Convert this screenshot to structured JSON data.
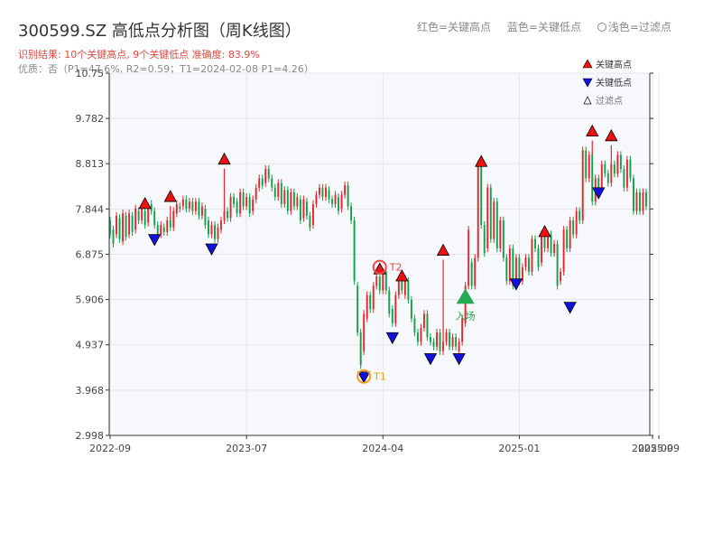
{
  "header": {
    "title": "300599.SZ 高低点分析图（周K线图）",
    "result_line": "识别结果: 10个关键高点, 9个关键低点  准确度: 83.9%",
    "quality_line": "优质：否（P1=47.6%, R2=0.59；T1=2024-02-08 P1=4.26）"
  },
  "top_legend": {
    "red": "红色=关键高点",
    "blue": "蓝色=关键低点",
    "hollow": "浅色=过滤点"
  },
  "colors": {
    "up": "#e0282e",
    "down": "#13a04a",
    "high_marker": "#ee1111",
    "low_marker": "#1111dd",
    "entry_marker": "#22aa55",
    "t1_ring": "#f39c12",
    "t2_ring": "#ee4444",
    "plot_bg": "#f6f8fb"
  },
  "chart_data": {
    "type": "candlestick",
    "y_ticks": [
      "2.998",
      "3.968",
      "4.937",
      "5.906",
      "6.875",
      "7.844",
      "8.813",
      "9.782",
      "10.75"
    ],
    "ylim": [
      2.998,
      10.75
    ],
    "x_ticks": [
      {
        "label": "2022-09",
        "week": 0
      },
      {
        "label": "2023-07",
        "week": 43
      },
      {
        "label": "2024-04",
        "week": 86
      },
      {
        "label": "2025-01",
        "week": 129
      },
      {
        "label": "2025-09",
        "week": 171
      },
      {
        "label": "2025-09",
        "week": 173
      }
    ],
    "candles": [
      [
        7.6,
        7.3
      ],
      [
        7.4,
        7.1
      ],
      [
        7.3,
        7.7
      ],
      [
        7.65,
        7.2
      ],
      [
        7.15,
        7.75
      ],
      [
        7.7,
        7.25
      ],
      [
        7.3,
        7.75
      ],
      [
        7.7,
        7.35
      ],
      [
        7.4,
        7.85
      ],
      [
        7.8,
        7.6
      ],
      [
        7.6,
        7.85
      ],
      [
        7.8,
        7.5
      ],
      [
        7.55,
        7.9
      ],
      [
        7.95,
        7.8
      ],
      [
        7.8,
        7.5
      ],
      [
        7.5,
        7.3
      ],
      [
        7.3,
        7.5
      ],
      [
        7.45,
        7.35
      ],
      [
        7.35,
        7.6
      ],
      [
        7.6,
        7.45
      ],
      [
        7.45,
        7.8
      ],
      [
        7.75,
        7.95
      ],
      [
        7.9,
        7.85
      ],
      [
        7.9,
        8.05
      ],
      [
        8.05,
        7.85
      ],
      [
        7.85,
        8.0
      ],
      [
        8.0,
        7.8
      ],
      [
        7.8,
        8.0
      ],
      [
        8.0,
        7.7
      ],
      [
        7.7,
        7.9
      ],
      [
        7.85,
        7.5
      ],
      [
        7.6,
        7.3
      ],
      [
        7.3,
        7.5
      ],
      [
        7.5,
        7.2
      ],
      [
        7.2,
        7.45
      ],
      [
        7.4,
        7.6
      ],
      [
        7.6,
        7.8
      ],
      [
        7.8,
        7.65
      ],
      [
        7.65,
        8.1
      ],
      [
        8.1,
        7.95
      ],
      [
        8.0,
        7.75
      ],
      [
        7.75,
        8.2
      ],
      [
        8.2,
        7.9
      ],
      [
        7.9,
        8.1
      ],
      [
        8.1,
        7.75
      ],
      [
        7.8,
        8.05
      ],
      [
        8.05,
        8.3
      ],
      [
        8.3,
        8.5
      ],
      [
        8.5,
        8.35
      ],
      [
        8.4,
        8.7
      ],
      [
        8.7,
        8.5
      ],
      [
        8.5,
        8.3
      ],
      [
        8.3,
        8.1
      ],
      [
        8.1,
        8.4
      ],
      [
        8.4,
        7.95
      ],
      [
        7.95,
        8.25
      ],
      [
        8.25,
        7.8
      ],
      [
        7.8,
        8.2
      ],
      [
        8.2,
        7.9
      ],
      [
        7.9,
        8.1
      ],
      [
        8.05,
        7.6
      ],
      [
        7.65,
        8.05
      ],
      [
        8.0,
        7.7
      ],
      [
        7.7,
        7.45
      ],
      [
        7.5,
        7.95
      ],
      [
        7.95,
        8.15
      ],
      [
        8.15,
        8.3
      ],
      [
        8.3,
        8.1
      ],
      [
        8.1,
        8.3
      ],
      [
        8.25,
        8.05
      ],
      [
        8.05,
        7.95
      ],
      [
        7.95,
        8.15
      ],
      [
        8.1,
        7.8
      ],
      [
        7.85,
        8.15
      ],
      [
        8.15,
        8.35
      ],
      [
        8.35,
        7.9
      ],
      [
        7.9,
        7.6
      ],
      [
        7.6,
        6.3
      ],
      [
        6.2,
        5.2
      ],
      [
        5.2,
        4.5
      ],
      [
        4.8,
        5.6
      ],
      [
        5.5,
        6.0
      ],
      [
        6.0,
        5.7
      ],
      [
        5.7,
        6.2
      ],
      [
        6.2,
        6.4
      ],
      [
        6.4,
        6.1
      ],
      [
        6.1,
        6.5
      ],
      [
        6.5,
        6.1
      ],
      [
        6.1,
        5.6
      ],
      [
        5.7,
        5.4
      ],
      [
        5.4,
        6.0
      ],
      [
        6.0,
        6.3
      ],
      [
        6.3,
        6.1
      ],
      [
        6.0,
        6.35
      ],
      [
        6.3,
        5.9
      ],
      [
        5.9,
        5.5
      ],
      [
        5.5,
        5.2
      ],
      [
        5.2,
        5.0
      ],
      [
        5.0,
        5.3
      ],
      [
        5.3,
        5.6
      ],
      [
        5.6,
        5.1
      ],
      [
        5.1,
        5.0
      ],
      [
        5.0,
        4.9
      ],
      [
        4.9,
        5.2
      ],
      [
        5.2,
        4.8
      ],
      [
        4.8,
        5.0
      ],
      [
        5.0,
        5.2
      ],
      [
        5.2,
        4.9
      ],
      [
        4.9,
        5.1
      ],
      [
        5.1,
        4.9
      ],
      [
        4.8,
        5.0
      ],
      [
        5.0,
        5.5
      ],
      [
        5.4,
        6.2
      ],
      [
        6.2,
        7.4
      ],
      [
        6.7,
        6.2
      ],
      [
        6.2,
        6.8
      ],
      [
        6.8,
        8.8
      ],
      [
        8.8,
        7.5
      ],
      [
        7.5,
        6.9
      ],
      [
        7.0,
        8.3
      ],
      [
        8.3,
        7.2
      ],
      [
        7.2,
        8.0
      ],
      [
        8.0,
        7.0
      ],
      [
        7.0,
        7.6
      ],
      [
        7.6,
        6.8
      ],
      [
        6.8,
        6.3
      ],
      [
        6.3,
        7.0
      ],
      [
        7.0,
        6.2
      ],
      [
        6.3,
        6.8
      ],
      [
        6.8,
        6.3
      ],
      [
        6.3,
        6.6
      ],
      [
        6.6,
        6.8
      ],
      [
        6.8,
        6.5
      ],
      [
        6.5,
        7.2
      ],
      [
        7.2,
        7.0
      ],
      [
        7.0,
        6.6
      ],
      [
        6.7,
        7.3
      ],
      [
        7.3,
        7.0
      ],
      [
        7.0,
        7.3
      ],
      [
        7.3,
        6.9
      ],
      [
        6.9,
        7.1
      ],
      [
        7.1,
        6.2
      ],
      [
        6.3,
        6.5
      ],
      [
        6.5,
        7.4
      ],
      [
        7.4,
        7.0
      ],
      [
        7.0,
        7.6
      ],
      [
        7.6,
        7.3
      ],
      [
        7.3,
        7.8
      ],
      [
        7.8,
        7.6
      ],
      [
        7.6,
        9.1
      ],
      [
        9.1,
        8.5
      ],
      [
        8.5,
        9.0
      ],
      [
        9.0,
        8.0
      ],
      [
        8.0,
        8.5
      ],
      [
        8.5,
        8.3
      ],
      [
        8.3,
        8.8
      ],
      [
        8.8,
        8.6
      ],
      [
        8.6,
        8.4
      ],
      [
        8.4,
        8.8
      ],
      [
        8.8,
        8.6
      ],
      [
        8.6,
        9.0
      ],
      [
        9.0,
        8.7
      ],
      [
        8.7,
        8.3
      ],
      [
        8.3,
        8.9
      ],
      [
        8.9,
        8.5
      ],
      [
        8.5,
        7.8
      ],
      [
        7.8,
        8.2
      ],
      [
        8.2,
        7.8
      ],
      [
        7.8,
        8.2
      ],
      [
        8.2,
        7.9
      ]
    ],
    "key_highs": [
      {
        "week": 11,
        "price": 7.95
      },
      {
        "week": 19,
        "price": 8.1
      },
      {
        "week": 36,
        "price": 8.9
      },
      {
        "week": 85,
        "price": 6.55
      },
      {
        "week": 92,
        "price": 6.4
      },
      {
        "week": 105,
        "price": 6.95
      },
      {
        "week": 117,
        "price": 8.85
      },
      {
        "week": 137,
        "price": 7.35
      },
      {
        "week": 152,
        "price": 9.5
      },
      {
        "week": 158,
        "price": 9.4
      }
    ],
    "key_lows": [
      {
        "week": 14,
        "price": 7.2
      },
      {
        "week": 32,
        "price": 7.0
      },
      {
        "week": 80,
        "price": 4.26
      },
      {
        "week": 89,
        "price": 5.1
      },
      {
        "week": 101,
        "price": 4.65
      },
      {
        "week": 110,
        "price": 4.65
      },
      {
        "week": 128,
        "price": 6.25
      },
      {
        "week": 145,
        "price": 5.75
      },
      {
        "week": 154,
        "price": 8.2
      }
    ],
    "t1": {
      "label": "T1",
      "week": 80,
      "price": 4.26
    },
    "t2": {
      "label": "T2",
      "week": 85,
      "price": 6.6
    },
    "entry": {
      "label": "入场",
      "week": 112,
      "price": 5.95
    },
    "legend": {
      "high": "关键高点",
      "low": "关键低点",
      "filtered": "过滤点"
    }
  }
}
